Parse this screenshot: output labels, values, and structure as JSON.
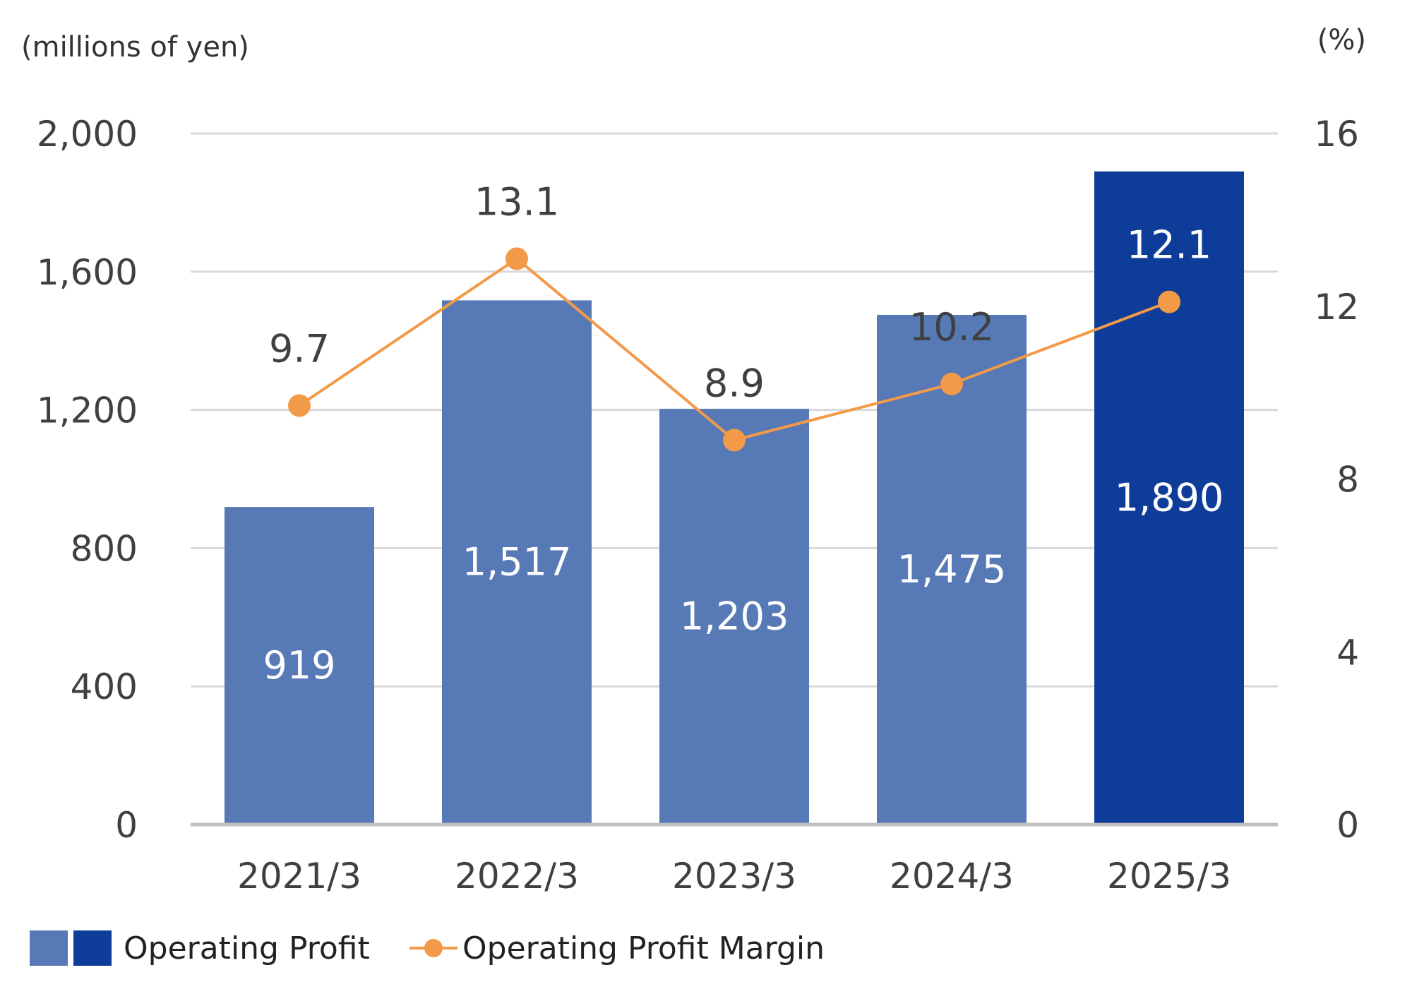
{
  "chart_data": {
    "type": "bar",
    "categories": [
      "2021/3",
      "2022/3",
      "2023/3",
      "2024/3",
      "2025/3"
    ],
    "series": [
      {
        "name": "Operating Profit",
        "type": "bar",
        "axis": "left",
        "values": [
          919,
          1517,
          1203,
          1475,
          1890
        ],
        "labels": [
          "919",
          "1,517",
          "1,203",
          "1,475",
          "1,890"
        ]
      },
      {
        "name": "Operating Profit Margin",
        "type": "line",
        "axis": "right",
        "values": [
          9.7,
          13.1,
          8.9,
          10.2,
          12.1
        ],
        "labels": [
          "9.7",
          "13.1",
          "8.9",
          "10.2",
          "12.1"
        ]
      }
    ],
    "left_axis": {
      "unit_label": "(millions of yen)",
      "ylim": [
        0,
        2000
      ],
      "ticks": [
        "0",
        "400",
        "800",
        "1,200",
        "1,600",
        "2,000"
      ]
    },
    "right_axis": {
      "unit_label": "(%)",
      "ylim": [
        0,
        16
      ],
      "ticks": [
        "0",
        "4",
        "8",
        "12",
        "16"
      ]
    },
    "legend": {
      "placement": "bottom-left",
      "bar_label": "Operating Profit",
      "line_label": "Operating Profit Margin"
    },
    "grid": true
  },
  "colors": {
    "bar": "#5779b6",
    "bar_highlight": "#0d3d99",
    "line": "#f39a48",
    "grid": "#d9d9d9",
    "baseline": "#bfbfbf",
    "label_dark": "#404040",
    "label_light": "#ffffff"
  }
}
